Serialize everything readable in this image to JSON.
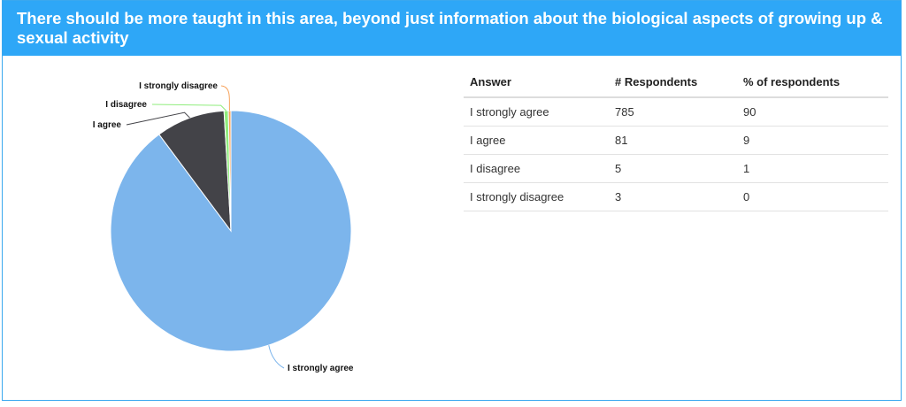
{
  "header": {
    "title": "There should be more taught in this area, beyond just information about the biological aspects of growing up & sexual activity"
  },
  "table": {
    "columns": [
      "Answer",
      "# Respondents",
      "% of respondents"
    ],
    "rows": [
      [
        "I strongly agree",
        "785",
        "90"
      ],
      [
        "I agree",
        "81",
        "9"
      ],
      [
        "I disagree",
        "5",
        "1"
      ],
      [
        "I strongly disagree",
        "3",
        "0"
      ]
    ]
  },
  "chart_data": {
    "type": "pie",
    "categories": [
      "I strongly agree",
      "I agree",
      "I disagree",
      "I strongly disagree"
    ],
    "values": [
      785,
      81,
      5,
      3
    ],
    "colors": [
      "#7cb5ec",
      "#434348",
      "#90ed7d",
      "#f7a35c"
    ],
    "title": ""
  }
}
